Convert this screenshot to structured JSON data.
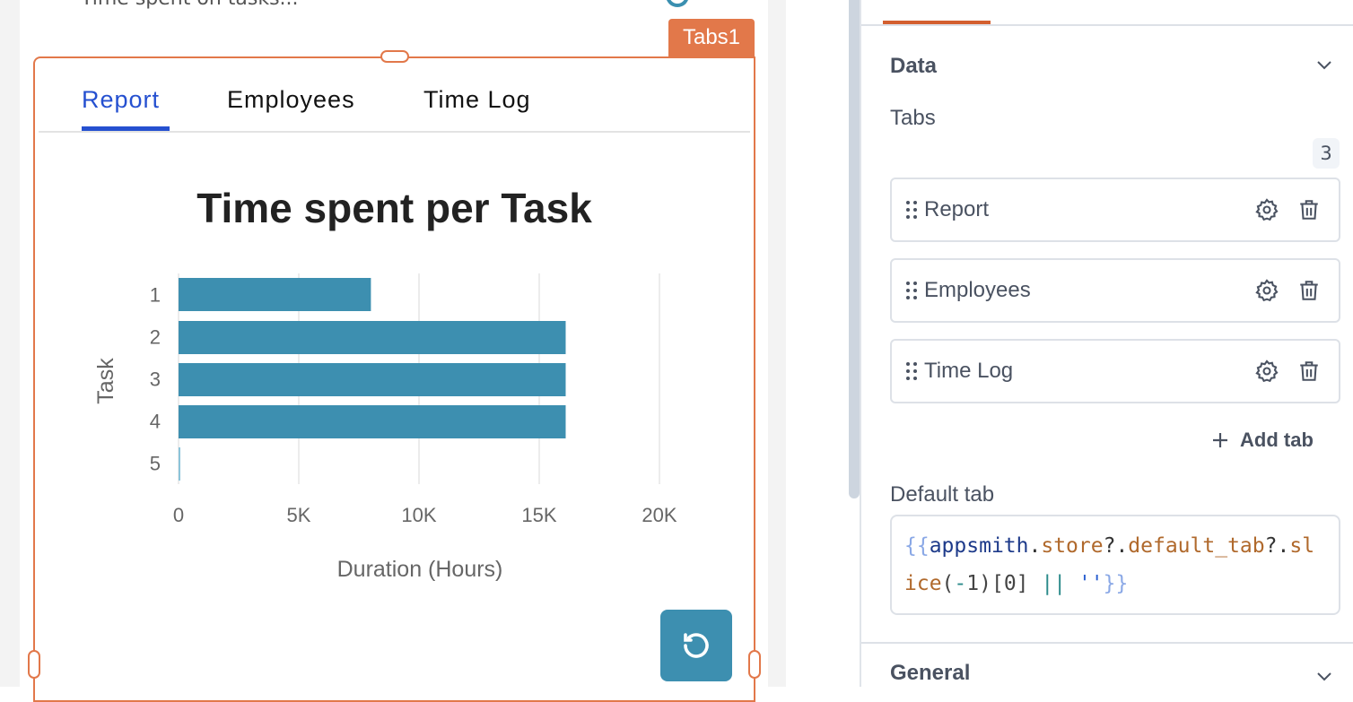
{
  "canvas": {
    "cut_text": "Time spent on tasks...",
    "widget_label": "Tabs1",
    "tabs": [
      {
        "label": "Report",
        "active": true
      },
      {
        "label": "Employees"
      },
      {
        "label": "Time Log"
      }
    ],
    "accent_color": "#2550d0",
    "selection_color": "#e2784a",
    "refresh_icon": "refresh-icon"
  },
  "chart_data": {
    "type": "bar",
    "orientation": "horizontal",
    "title": "Time spent per Task",
    "xlabel": "Duration (Hours)",
    "ylabel": "Task",
    "categories": [
      "1",
      "2",
      "3",
      "4",
      "5"
    ],
    "values": [
      8000,
      16100,
      16100,
      16100,
      50
    ],
    "xlim": [
      0,
      22500
    ],
    "xticks": [
      "0",
      "5K",
      "10K",
      "15K",
      "20K"
    ],
    "xtick_values": [
      0,
      5000,
      10000,
      15000,
      20000
    ],
    "grid": true,
    "bar_color": "#3d8fb0"
  },
  "panel": {
    "section_data": "Data",
    "tabs_label": "Tabs",
    "tabs_count": "3",
    "tab_items": [
      {
        "label": "Report"
      },
      {
        "label": "Employees"
      },
      {
        "label": "Time Log"
      }
    ],
    "add_tab": "Add tab",
    "default_tab_label": "Default tab",
    "default_tab_code": [
      {
        "t": "{{",
        "c": "#8aa8e6"
      },
      {
        "t": "appsmith",
        "c": "#1d3a8a"
      },
      {
        "t": ".",
        "c": "#333"
      },
      {
        "t": "store",
        "c": "#b0692c"
      },
      {
        "t": "?.",
        "c": "#333"
      },
      {
        "t": "default_tab",
        "c": "#b0692c"
      },
      {
        "t": "?",
        "c": "#333"
      },
      {
        "t": ".",
        "c": "#333"
      },
      {
        "t": "slice",
        "c": "#b0692c"
      },
      {
        "t": "(",
        "c": "#444"
      },
      {
        "t": "-",
        "c": "#2a8a8a"
      },
      {
        "t": "1",
        "c": "#444"
      },
      {
        "t": ")[0] ",
        "c": "#444"
      },
      {
        "t": "||",
        "c": "#2a8a8a"
      },
      {
        "t": " ",
        "c": "#444"
      },
      {
        "t": "''",
        "c": "#2a5fd0"
      },
      {
        "t": "}}",
        "c": "#8aa8e6"
      }
    ],
    "section_general": "General"
  }
}
